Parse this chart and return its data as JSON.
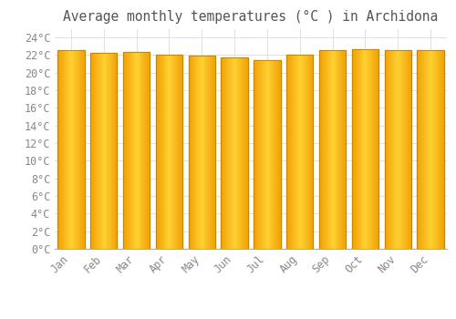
{
  "title": "Average monthly temperatures (°C ) in Archidona",
  "months": [
    "Jan",
    "Feb",
    "Mar",
    "Apr",
    "May",
    "Jun",
    "Jul",
    "Aug",
    "Sep",
    "Oct",
    "Nov",
    "Dec"
  ],
  "values": [
    22.6,
    22.3,
    22.4,
    22.1,
    21.9,
    21.7,
    21.4,
    22.0,
    22.6,
    22.7,
    22.6,
    22.6
  ],
  "bar_color_center": "#FFD050",
  "bar_color_edge": "#F0A000",
  "bar_edge_color": "#C08000",
  "ylim": [
    0,
    25
  ],
  "ytick_step": 2,
  "background_color": "#FFFFFF",
  "plot_bg_color": "#FFFFFF",
  "grid_color": "#E0E0E0",
  "title_fontsize": 10.5,
  "tick_fontsize": 8.5,
  "title_color": "#555555",
  "tick_color": "#888888"
}
